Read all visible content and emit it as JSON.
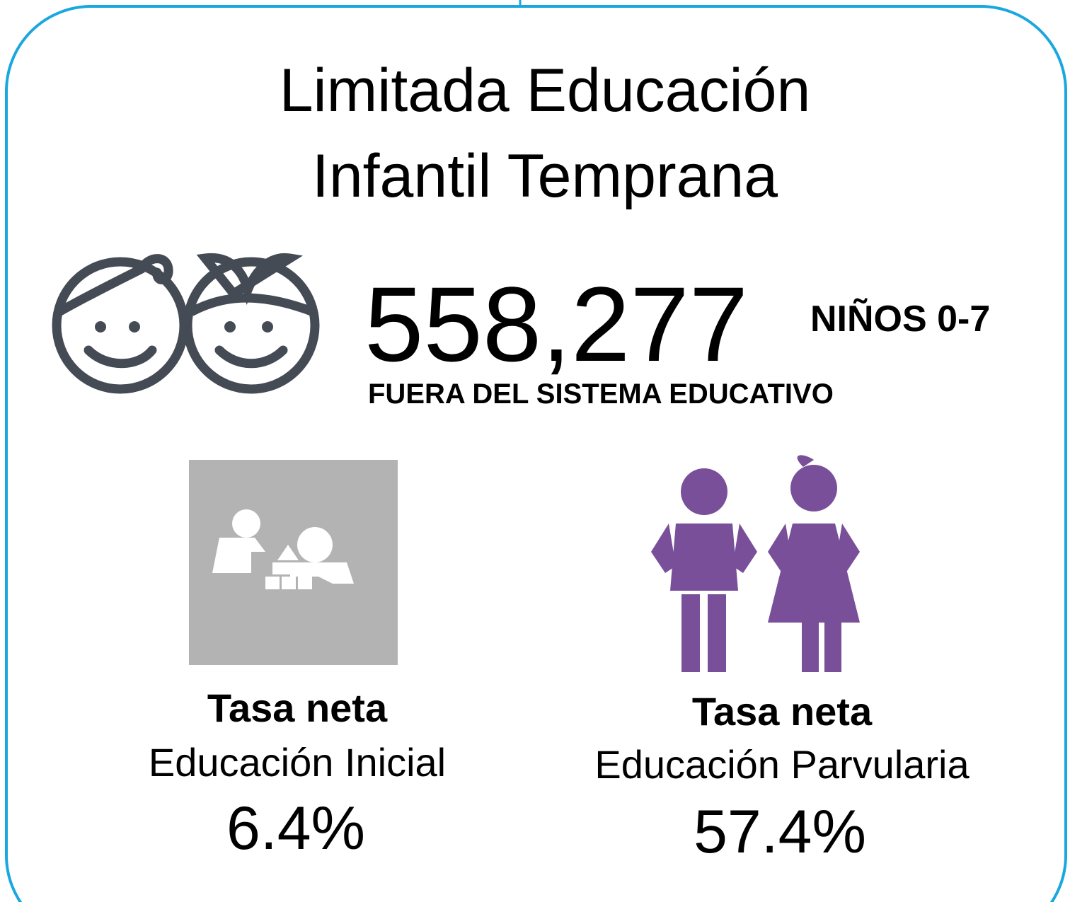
{
  "title": {
    "lines": [
      "Limitada Educación",
      "Infantil Temprana"
    ]
  },
  "headline": {
    "number": "558,277",
    "unit": "NIÑOS 0-7",
    "caption": "FUERA DEL SISTEMA EDUCATIVO"
  },
  "stats": [
    {
      "lines": [
        "Tasa neta",
        "Educación Inicial"
      ],
      "value": "6.4%"
    },
    {
      "lines": [
        "Tasa neta",
        "Educación Parvularia"
      ],
      "value": "57.4%"
    }
  ]
}
